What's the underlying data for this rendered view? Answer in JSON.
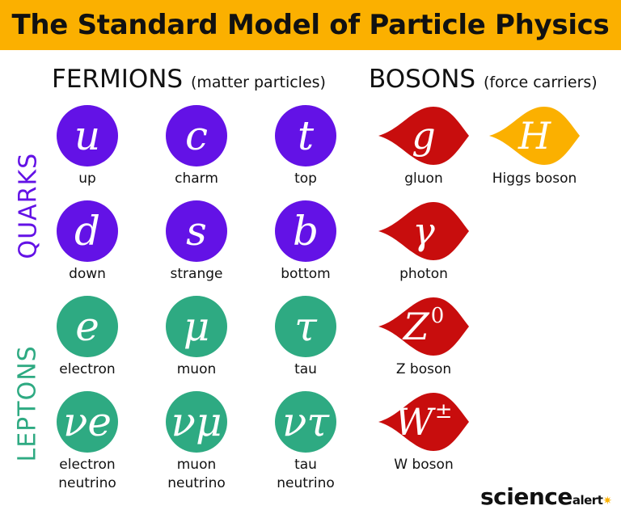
{
  "title": "The Standard Model of Particle Physics",
  "headings": {
    "fermions": "FERMIONS",
    "fermions_sub": "(matter particles)",
    "bosons": "BOSONS",
    "bosons_sub": "(force carriers)",
    "quarks": "QUARKS",
    "leptons": "LEPTONS"
  },
  "colors": {
    "quark": "#6312E6",
    "lepton": "#2EAA82",
    "gauge": "#C80D0D",
    "higgs": "#FBB000",
    "title_bg": "#FBB000"
  },
  "fermions": [
    {
      "symbol": "u",
      "name": "up",
      "group": "quark"
    },
    {
      "symbol": "c",
      "name": "charm",
      "group": "quark"
    },
    {
      "symbol": "t",
      "name": "top",
      "group": "quark"
    },
    {
      "symbol": "d",
      "name": "down",
      "group": "quark"
    },
    {
      "symbol": "s",
      "name": "strange",
      "group": "quark"
    },
    {
      "symbol": "b",
      "name": "bottom",
      "group": "quark"
    },
    {
      "symbol": "e",
      "name": "electron",
      "group": "lepton"
    },
    {
      "symbol": "μ",
      "name": "muon",
      "group": "lepton"
    },
    {
      "symbol": "τ",
      "name": "tau",
      "group": "lepton"
    },
    {
      "symbol": "νe",
      "name": "electron neutrino",
      "group": "lepton"
    },
    {
      "symbol": "νμ",
      "name": "muon neutrino",
      "group": "lepton"
    },
    {
      "symbol": "ντ",
      "name": "tau neutrino",
      "group": "lepton"
    }
  ],
  "bosons": [
    {
      "symbol": "g",
      "sup": "",
      "name": "gluon",
      "group": "gauge"
    },
    {
      "symbol": "H",
      "sup": "",
      "name": "Higgs boson",
      "group": "higgs"
    },
    {
      "symbol": "γ",
      "sup": "",
      "name": "photon",
      "group": "gauge"
    },
    {
      "symbol": "Z",
      "sup": "0",
      "name": "Z boson",
      "group": "gauge"
    },
    {
      "symbol": "W",
      "sup": "±",
      "name": "W boson",
      "group": "gauge"
    }
  ],
  "logo": {
    "main": "science",
    "sub": "alert"
  }
}
